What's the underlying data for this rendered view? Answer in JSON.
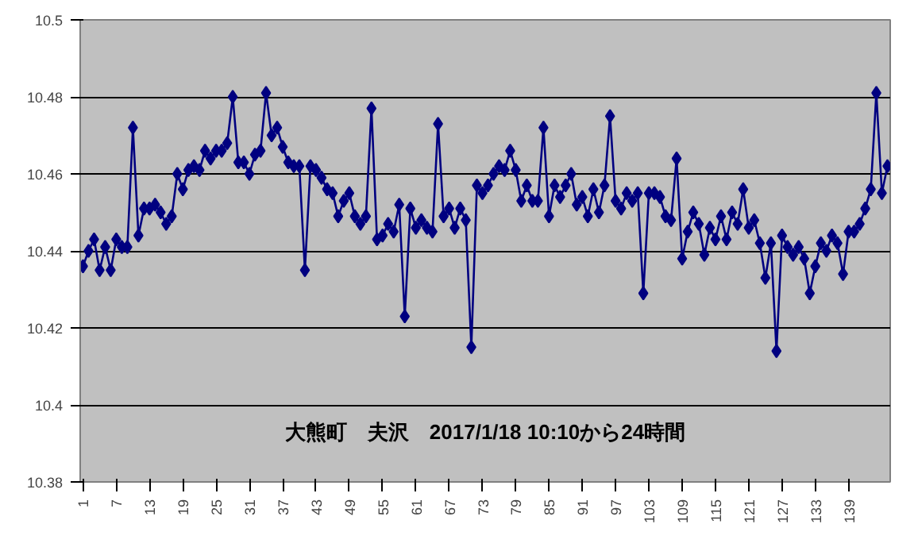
{
  "chart_data": {
    "type": "line",
    "annotations": [
      "大熊町　夫沢　2017/1/18 10:10から24時間"
    ],
    "x": [
      1,
      2,
      3,
      4,
      5,
      6,
      7,
      8,
      9,
      10,
      11,
      12,
      13,
      14,
      15,
      16,
      17,
      18,
      19,
      20,
      21,
      22,
      23,
      24,
      25,
      26,
      27,
      28,
      29,
      30,
      31,
      32,
      33,
      34,
      35,
      36,
      37,
      38,
      39,
      40,
      41,
      42,
      43,
      44,
      45,
      46,
      47,
      48,
      49,
      50,
      51,
      52,
      53,
      54,
      55,
      56,
      57,
      58,
      59,
      60,
      61,
      62,
      63,
      64,
      65,
      66,
      67,
      68,
      69,
      70,
      71,
      72,
      73,
      74,
      75,
      76,
      77,
      78,
      79,
      80,
      81,
      82,
      83,
      84,
      85,
      86,
      87,
      88,
      89,
      90,
      91,
      92,
      93,
      94,
      95,
      96,
      97,
      98,
      99,
      100,
      101,
      102,
      103,
      104,
      105,
      106,
      107,
      108,
      109,
      110,
      111,
      112,
      113,
      114,
      115,
      116,
      117,
      118,
      119,
      120,
      121,
      122,
      123,
      124,
      125,
      126,
      127,
      128,
      129,
      130,
      131,
      132,
      133,
      134,
      135,
      136,
      137,
      138,
      139,
      140,
      141,
      142,
      143,
      144,
      145,
      146
    ],
    "series": [
      {
        "color": "#000080",
        "values": [
          10.436,
          10.44,
          10.443,
          10.435,
          10.441,
          10.435,
          10.443,
          10.441,
          10.441,
          10.472,
          10.444,
          10.451,
          10.451,
          10.452,
          10.45,
          10.447,
          10.449,
          10.46,
          10.456,
          10.461,
          10.462,
          10.461,
          10.466,
          10.464,
          10.466,
          10.466,
          10.468,
          10.48,
          10.463,
          10.463,
          10.46,
          10.465,
          10.466,
          10.481,
          10.47,
          10.472,
          10.467,
          10.463,
          10.462,
          10.462,
          10.435,
          10.462,
          10.461,
          10.459,
          10.456,
          10.455,
          10.449,
          10.453,
          10.455,
          10.449,
          10.447,
          10.449,
          10.477,
          10.443,
          10.444,
          10.447,
          10.445,
          10.452,
          10.423,
          10.451,
          10.446,
          10.448,
          10.446,
          10.445,
          10.473,
          10.449,
          10.451,
          10.446,
          10.451,
          10.448,
          10.415,
          10.457,
          10.455,
          10.457,
          10.46,
          10.462,
          10.461,
          10.466,
          10.461,
          10.453,
          10.457,
          10.453,
          10.453,
          10.472,
          10.449,
          10.457,
          10.454,
          10.457,
          10.46,
          10.452,
          10.454,
          10.449,
          10.456,
          10.45,
          10.457,
          10.475,
          10.453,
          10.451,
          10.455,
          10.453,
          10.455,
          10.429,
          10.455,
          10.455,
          10.454,
          10.449,
          10.448,
          10.464,
          10.438,
          10.445,
          10.45,
          10.447,
          10.439,
          10.446,
          10.443,
          10.449,
          10.443,
          10.45,
          10.447,
          10.456,
          10.446,
          10.448,
          10.442,
          10.433,
          10.442,
          10.414,
          10.444,
          10.441,
          10.439,
          10.441,
          10.438,
          10.429,
          10.436,
          10.442,
          10.44,
          10.444,
          10.442,
          10.434,
          10.445,
          10.445,
          10.447,
          10.451,
          10.456,
          10.481,
          10.455,
          10.462
        ]
      }
    ],
    "xlim": [
      0.5,
      146.5
    ],
    "xticks": [
      1,
      7,
      13,
      19,
      25,
      31,
      37,
      43,
      49,
      55,
      61,
      67,
      73,
      79,
      85,
      91,
      97,
      103,
      109,
      115,
      121,
      127,
      133,
      139
    ],
    "ylim": [
      10.38,
      10.5
    ],
    "yticks": [
      10.38,
      10.4,
      10.42,
      10.44,
      10.46,
      10.48,
      10.5
    ],
    "grid": "y",
    "marker": "diamond",
    "line_style": "solid"
  }
}
